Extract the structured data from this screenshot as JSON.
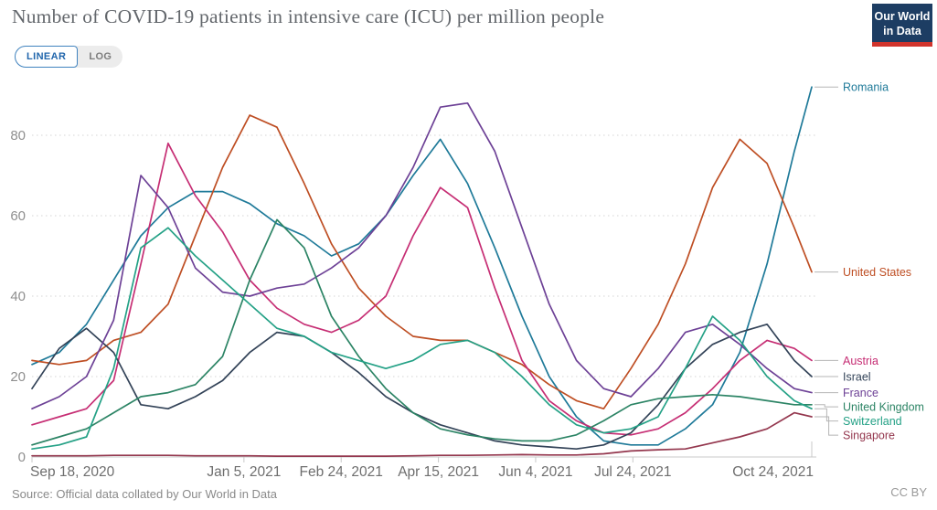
{
  "header": {
    "title": "Number of COVID-19 patients in intensive care (ICU) per million people",
    "logo": {
      "line1": "Our World",
      "line2": "in Data",
      "bg_color": "#1d3d63",
      "stripe_color": "#d0342c",
      "text_color": "#ffffff"
    }
  },
  "controls": {
    "scale_options": [
      {
        "label": "LINEAR",
        "active": true
      },
      {
        "label": "LOG",
        "active": false
      }
    ],
    "active_color": "#2166ac",
    "inactive_color": "#7d7d7d"
  },
  "footer": {
    "source": "Source: Official data collated by Our World in Data",
    "license": "CC BY"
  },
  "chart_data": {
    "type": "line",
    "title": "Number of COVID-19 patients in intensive care (ICU) per million people",
    "x_axis": {
      "start_date": "Sep 18, 2020",
      "end_date": "Oct 24, 2021",
      "tick_labels": [
        "Sep 18, 2020",
        "Jan 5, 2021",
        "Feb 24, 2021",
        "Apr 15, 2021",
        "Jun 4, 2021",
        "Jul 24, 2021",
        "Oct 24, 2021"
      ],
      "tick_days": [
        0,
        109,
        159,
        209,
        259,
        309,
        401
      ],
      "range_days": [
        0,
        401
      ]
    },
    "y_axis": {
      "ticks": [
        0,
        20,
        40,
        60,
        80
      ],
      "range": [
        0,
        95
      ],
      "gridline_style": "dotted",
      "gridline_color": "#d4d4d4",
      "axis_color": "#c9c9c9",
      "tick_label_color": "#8f8f8f",
      "x_label_color": "#6e6e6e"
    },
    "legend_position": "right-end-labels",
    "days_since_start": [
      0,
      14,
      28,
      42,
      56,
      70,
      84,
      98,
      112,
      126,
      140,
      154,
      168,
      182,
      196,
      210,
      224,
      238,
      252,
      266,
      280,
      294,
      308,
      322,
      336,
      350,
      364,
      378,
      392,
      401
    ],
    "series": [
      {
        "name": "Romania",
        "color": "#1f7a99",
        "values": [
          23,
          26,
          33,
          44,
          55,
          62,
          66,
          66,
          63,
          58,
          55,
          50,
          53,
          60,
          70,
          79,
          68,
          52,
          35,
          20,
          10,
          4,
          3,
          3,
          7,
          13,
          26,
          48,
          76,
          92
        ]
      },
      {
        "name": "United States",
        "color": "#be4e23",
        "values": [
          24,
          23,
          24,
          29,
          31,
          38,
          55,
          72,
          85,
          82,
          68,
          53,
          42,
          35,
          30,
          29,
          29,
          26,
          23,
          18,
          14,
          12,
          22,
          33,
          48,
          67,
          79,
          73,
          57,
          46
        ]
      },
      {
        "name": "Austria",
        "color": "#c62e74",
        "values": [
          8,
          10,
          12,
          19,
          48,
          78,
          65,
          56,
          44,
          37,
          33,
          31,
          34,
          40,
          55,
          67,
          62,
          42,
          24,
          14,
          9,
          6,
          5.5,
          7,
          11,
          17,
          24,
          29,
          27,
          24
        ]
      },
      {
        "name": "Israel",
        "color": "#334358",
        "values": [
          17,
          27,
          32,
          26,
          13,
          12,
          15,
          19,
          26,
          31,
          30,
          26,
          21,
          15,
          11,
          8,
          6,
          4,
          3,
          2.5,
          2,
          3,
          6,
          13,
          22,
          28,
          31,
          33,
          24,
          20
        ]
      },
      {
        "name": "France",
        "color": "#6d4196",
        "values": [
          12,
          15,
          20,
          34,
          70,
          62,
          47,
          41,
          40,
          42,
          43,
          47,
          52,
          60,
          72,
          87,
          88,
          76,
          57,
          38,
          24,
          17,
          15,
          22,
          31,
          33,
          28,
          22,
          17,
          16
        ]
      },
      {
        "name": "United Kingdom",
        "color": "#2c8465",
        "values": [
          3,
          5,
          7,
          11,
          15,
          16,
          18,
          25,
          44,
          59,
          52,
          35,
          25,
          17,
          11,
          7,
          5.5,
          4.5,
          4,
          4,
          5.5,
          9,
          13,
          14.5,
          15,
          15.5,
          15,
          14,
          13,
          13
        ]
      },
      {
        "name": "Switzerland",
        "color": "#24a186",
        "values": [
          2,
          3,
          5,
          22,
          52,
          57,
          50,
          44,
          38,
          32,
          30,
          26,
          24,
          22,
          24,
          28,
          29,
          26,
          20,
          13,
          8,
          6,
          7,
          10,
          22,
          35,
          29,
          20,
          14,
          12
        ]
      },
      {
        "name": "Singapore",
        "color": "#94374e",
        "values": [
          0.3,
          0.3,
          0.3,
          0.4,
          0.4,
          0.4,
          0.3,
          0.3,
          0.3,
          0.2,
          0.2,
          0.2,
          0.2,
          0.2,
          0.3,
          0.4,
          0.4,
          0.5,
          0.6,
          0.5,
          0.5,
          0.8,
          1.5,
          1.8,
          2,
          3.5,
          5,
          7,
          11,
          10
        ]
      }
    ]
  }
}
